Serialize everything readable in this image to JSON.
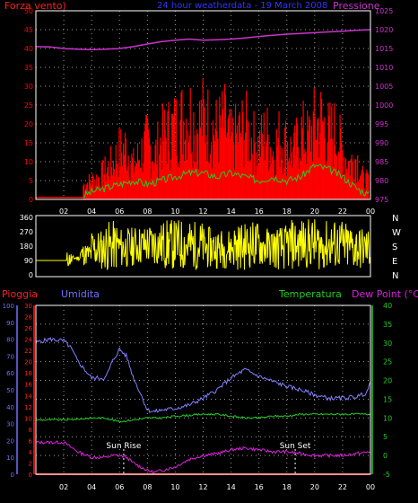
{
  "header": {
    "title": "24 hour weatherdata - 19 March 2008",
    "left_label": "Forza vento)",
    "right_label": "Pressione"
  },
  "colors": {
    "background": "#000000",
    "frame": "#ffffff",
    "grid": "#9a9a9a",
    "wind": "#ff0000",
    "pressure": "#cc33cc",
    "title": "#3333ff",
    "wind_avg": "#22cc22",
    "wind_lull": "#ffffcc",
    "direction": "#ffff00",
    "rain": "#ff2020",
    "humidity": "#8080ff",
    "temperature": "#22cc22",
    "dewpoint": "#dd22dd",
    "rain_axis": "#ff2020",
    "humidity_axis": "#7070ff",
    "temp_axis": "#22cc22"
  },
  "chart_data": [
    {
      "type": "bar",
      "title": "24 hour weatherdata - 19 March 2008",
      "xlabel": "",
      "x_ticks": [
        "02",
        "04",
        "06",
        "08",
        "10",
        "12",
        "14",
        "16",
        "18",
        "20",
        "22",
        "00"
      ],
      "x_range_hours": [
        0,
        24
      ],
      "left_axis": {
        "label": "Forza vento)",
        "range": [
          0,
          50
        ],
        "ticks": [
          0,
          5,
          10,
          15,
          20,
          25,
          30,
          35,
          40,
          45,
          50
        ]
      },
      "right_axis": {
        "label": "Pressione",
        "range": [
          975,
          1025
        ],
        "ticks": [
          975,
          980,
          985,
          990,
          995,
          1000,
          1005,
          1010,
          1015,
          1020,
          1025
        ]
      },
      "grid": true,
      "series": [
        {
          "name": "Forza vento)",
          "axis": "left",
          "style": "bars",
          "x": [
            3.4,
            4.0,
            4.5,
            5.0,
            5.5,
            6.0,
            6.5,
            7.0,
            7.5,
            8.0,
            8.5,
            9.0,
            9.5,
            10.0,
            10.5,
            11.0,
            11.5,
            12.0,
            12.5,
            13.0,
            13.5,
            14.0,
            14.5,
            15.0,
            15.5,
            16.0,
            16.5,
            17.0,
            17.5,
            18.0,
            18.5,
            19.0,
            19.5,
            20.0,
            20.5,
            21.0,
            21.5,
            22.0,
            22.5,
            23.0,
            23.5
          ],
          "values": [
            6,
            8,
            9,
            12,
            15,
            20,
            22,
            14,
            19,
            24,
            18,
            25,
            28,
            30,
            33,
            36,
            30,
            34,
            31,
            28,
            32,
            24,
            27,
            30,
            25,
            22,
            28,
            20,
            26,
            23,
            19,
            28,
            25,
            31,
            33,
            27,
            28,
            20,
            15,
            18,
            8
          ]
        },
        {
          "name": "",
          "axis": "left",
          "style": "line",
          "x": [
            3.4,
            4.0,
            5.0,
            6.0,
            7.0,
            8.0,
            9.0,
            10.0,
            11.0,
            12.0,
            13.0,
            14.0,
            15.0,
            16.0,
            17.0,
            18.0,
            19.0,
            20.0,
            21.0,
            22.0,
            23.0,
            24.0
          ],
          "values": [
            1,
            2,
            3,
            4,
            5,
            4,
            5,
            6,
            7,
            7,
            6,
            7,
            6,
            5,
            6,
            5,
            6,
            9,
            8,
            6,
            3,
            1
          ]
        },
        {
          "name": "Pressione",
          "axis": "right",
          "style": "line",
          "x": [
            0,
            1,
            2,
            3,
            4,
            5,
            6,
            7,
            8,
            9,
            10,
            11,
            12,
            13,
            14,
            15,
            16,
            17,
            18,
            19,
            20,
            21,
            22,
            23,
            24
          ],
          "values": [
            1015.5,
            1015.4,
            1015,
            1014.8,
            1014.7,
            1014.8,
            1015,
            1015.5,
            1016.2,
            1016.8,
            1017.2,
            1017.5,
            1017.2,
            1017.3,
            1017.5,
            1017.8,
            1018.2,
            1018.5,
            1018.8,
            1019,
            1019.2,
            1019.4,
            1019.6,
            1019.8,
            1020
          ]
        }
      ]
    },
    {
      "type": "line",
      "xlabel": "",
      "x_range_hours": [
        0,
        24
      ],
      "left_axis": {
        "label": "",
        "range": [
          0,
          360
        ],
        "ticks": [
          0,
          90,
          180,
          270,
          360
        ]
      },
      "right_axis": {
        "label": "",
        "labels": [
          "N",
          "W",
          "S",
          "E",
          "N"
        ]
      },
      "series": [
        {
          "name": "",
          "style": "dense-line",
          "x": [
            0,
            2.2,
            2.6,
            3.2,
            4.0,
            5.0,
            6.0,
            7.0,
            8.0,
            9.0,
            10.0,
            11.0,
            12.0,
            13.0,
            14.0,
            15.0,
            16.0,
            17.0,
            18.0,
            19.0,
            20.0,
            21.0,
            22.0,
            23.0,
            24.0
          ],
          "min": [
            90,
            45,
            90,
            60,
            30,
            20,
            40,
            60,
            50,
            30,
            20,
            30,
            40,
            40,
            30,
            40,
            50,
            30,
            30,
            40,
            30,
            30,
            20,
            30,
            20
          ],
          "max": [
            90,
            150,
            120,
            200,
            290,
            340,
            300,
            310,
            330,
            350,
            355,
            340,
            300,
            290,
            330,
            340,
            300,
            310,
            350,
            355,
            340,
            350,
            330,
            300,
            320
          ]
        }
      ]
    },
    {
      "type": "line",
      "x_ticks": [
        "02",
        "04",
        "06",
        "08",
        "10",
        "12",
        "14",
        "16",
        "18",
        "20",
        "22",
        "00"
      ],
      "x_range_hours": [
        0,
        24
      ],
      "axes": {
        "pioggia": {
          "label": "Pioggia",
          "range": [
            0,
            30
          ],
          "ticks": [
            0,
            2,
            4,
            6,
            8,
            10,
            12,
            14,
            16,
            18,
            20,
            22,
            24,
            26,
            28,
            30
          ]
        },
        "umidita": {
          "label": "Umidita",
          "range": [
            0,
            100
          ],
          "ticks": [
            0,
            10,
            20,
            30,
            40,
            50,
            60,
            70,
            80,
            90,
            100
          ]
        },
        "temperatura": {
          "label": "Temperatura",
          "range": [
            -5,
            40
          ],
          "ticks": [
            -5,
            0,
            5,
            10,
            15,
            20,
            25,
            30,
            35,
            40
          ]
        },
        "dewpoint": {
          "label": "Dew Point (°C)"
        }
      },
      "grid": true,
      "annotations": [
        {
          "text": "Sun Rise",
          "x": 6.3
        },
        {
          "text": "Sun Set",
          "x": 18.6
        }
      ],
      "series": [
        {
          "name": "Pioggia",
          "axis": "pioggia",
          "x": [
            0,
            24
          ],
          "values": [
            0,
            0
          ]
        },
        {
          "name": "Umidita",
          "axis": "umidita",
          "x": [
            0,
            1,
            2,
            2.5,
            3,
            4,
            5,
            5.5,
            6,
            6.5,
            7,
            7.5,
            8,
            8.5,
            9,
            10,
            11,
            12,
            13,
            14,
            15,
            16,
            17,
            18,
            19,
            20,
            21,
            22,
            23,
            23.7,
            24
          ],
          "values": [
            78,
            80,
            79,
            75,
            67,
            57,
            57,
            67,
            74,
            70,
            57,
            48,
            38,
            37,
            38,
            39,
            41,
            45,
            50,
            57,
            62,
            58,
            55,
            52,
            50,
            47,
            45,
            45,
            46,
            48,
            54
          ]
        },
        {
          "name": "Temperatura",
          "axis": "temperatura",
          "x": [
            0,
            1,
            2,
            3,
            4,
            5,
            6,
            7,
            8,
            9,
            10,
            11,
            12,
            13,
            14,
            15,
            16,
            17,
            18,
            19,
            20,
            21,
            22,
            23,
            24
          ],
          "values": [
            9.5,
            9.5,
            9.5,
            9.7,
            10,
            10,
            9,
            9.5,
            10,
            10,
            10.5,
            10.7,
            11,
            11,
            10.5,
            10,
            10,
            10.5,
            10.5,
            11,
            11,
            11,
            11,
            11,
            11
          ]
        },
        {
          "name": "Dew Point (°C)",
          "axis": "temperatura",
          "x": [
            0,
            1,
            2,
            3,
            4,
            5,
            5.5,
            6,
            6.5,
            7,
            7.5,
            8,
            8.5,
            9,
            10,
            11,
            12,
            13,
            14,
            15,
            16,
            17,
            18,
            19,
            20,
            21,
            22,
            23,
            24
          ],
          "values": [
            3.5,
            3.5,
            3.5,
            1,
            -0.5,
            -0.5,
            0,
            0,
            -0.5,
            -2,
            -3,
            -4,
            -4.5,
            -4,
            -3,
            -1,
            0,
            0.5,
            1.5,
            2,
            1.5,
            1,
            1,
            0.5,
            0,
            0,
            0,
            0.5,
            1
          ]
        }
      ]
    }
  ]
}
